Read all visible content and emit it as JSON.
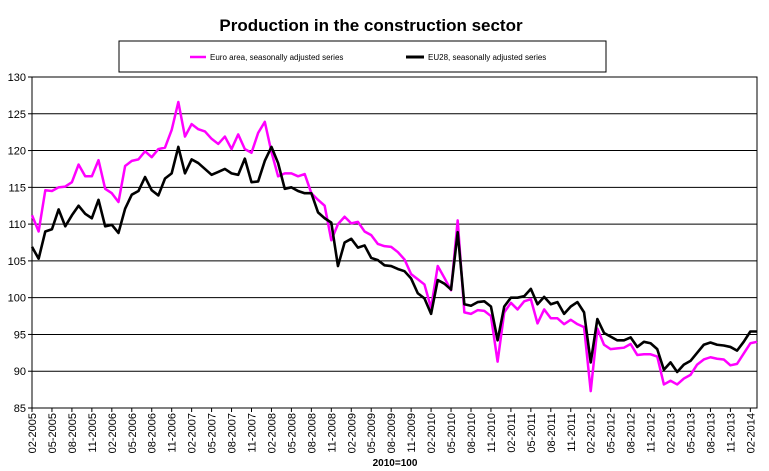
{
  "chart_data": {
    "type": "line",
    "title": "Production in the construction sector",
    "xlabel": "2010=100",
    "ylabel": "",
    "ylim": [
      85,
      130
    ],
    "yticks": [
      85,
      90,
      95,
      100,
      105,
      110,
      115,
      120,
      125,
      130
    ],
    "grid": true,
    "legend_position": "top",
    "x_ticks": [
      "02-2005",
      "05-2005",
      "08-2005",
      "11-2005",
      "02-2006",
      "05-2006",
      "08-2006",
      "11-2006",
      "02-2007",
      "05-2007",
      "08-2007",
      "11-2007",
      "02-2008",
      "05-2008",
      "08-2008",
      "11-2008",
      "02-2009",
      "05-2009",
      "08-2009",
      "11-2009",
      "02-2010",
      "05-2010",
      "08-2010",
      "11-2010",
      "02-2011",
      "05-2011",
      "08-2011",
      "11-2011",
      "02-2012",
      "05-2012",
      "08-2012",
      "11-2012",
      "02-2013",
      "05-2013",
      "08-2013",
      "11-2013",
      "02-2014"
    ],
    "x_start": "02-2005",
    "series": [
      {
        "name": "Euro area, seasonally adjusted series",
        "color": "#ff00ff",
        "values": [
          111.2,
          109.0,
          114.6,
          114.5,
          115.0,
          115.1,
          115.7,
          118.1,
          116.5,
          116.5,
          118.7,
          114.8,
          114.2,
          113.0,
          117.9,
          118.6,
          118.8,
          119.9,
          119.1,
          120.2,
          120.4,
          122.8,
          126.6,
          121.9,
          123.6,
          122.9,
          122.6,
          121.6,
          120.9,
          121.9,
          120.2,
          122.2,
          120.2,
          119.7,
          122.4,
          123.9,
          119.8,
          116.5,
          116.9,
          116.9,
          116.5,
          116.8,
          114.2,
          113.3,
          112.5,
          107.8,
          110.0,
          111.0,
          110.1,
          110.3,
          109.0,
          108.5,
          107.3,
          107.0,
          106.9,
          106.2,
          105.2,
          103.2,
          102.5,
          101.8,
          98.6,
          104.3,
          102.7,
          101.0,
          110.5,
          98.0,
          97.8,
          98.3,
          98.2,
          97.5,
          91.3,
          98.0,
          99.3,
          98.4,
          99.5,
          99.8,
          96.5,
          98.4,
          97.2,
          97.2,
          96.4,
          97.0,
          96.4,
          96.0,
          87.3,
          95.8,
          93.6,
          93.0,
          93.1,
          93.2,
          93.7,
          92.2,
          92.3,
          92.3,
          92.0,
          88.2,
          88.7,
          88.2,
          89.0,
          89.5,
          90.9,
          91.6,
          91.9,
          91.7,
          91.6,
          90.8,
          91.0,
          92.4,
          93.8,
          94.0
        ]
      },
      {
        "name": "EU28, seasonally adjusted series",
        "color": "#000000",
        "values": [
          106.9,
          105.3,
          109.0,
          109.3,
          112.0,
          109.7,
          111.2,
          112.5,
          111.4,
          110.8,
          113.3,
          109.7,
          109.9,
          108.8,
          112.1,
          114.0,
          114.5,
          116.4,
          114.6,
          113.9,
          116.2,
          116.9,
          120.5,
          116.9,
          118.8,
          118.3,
          117.5,
          116.7,
          117.1,
          117.5,
          116.9,
          116.7,
          118.9,
          115.7,
          115.8,
          118.6,
          120.5,
          118.3,
          114.8,
          115.0,
          114.5,
          114.2,
          114.2,
          111.6,
          110.8,
          110.2,
          104.3,
          107.5,
          108.0,
          106.8,
          107.1,
          105.4,
          105.1,
          104.4,
          104.3,
          103.9,
          103.6,
          102.6,
          100.6,
          99.9,
          97.8,
          102.4,
          101.9,
          101.1,
          108.9,
          99.1,
          98.9,
          99.4,
          99.5,
          98.8,
          94.2,
          98.8,
          100.0,
          100.0,
          100.2,
          101.2,
          99.1,
          100.1,
          99.1,
          99.4,
          97.8,
          98.8,
          99.4,
          98.0,
          91.2,
          97.1,
          95.2,
          94.7,
          94.2,
          94.2,
          94.6,
          93.3,
          94.0,
          93.8,
          93.0,
          90.2,
          91.2,
          89.9,
          90.9,
          91.4,
          92.5,
          93.6,
          93.9,
          93.6,
          93.5,
          93.3,
          92.8,
          94.0,
          95.4,
          95.4
        ]
      }
    ]
  }
}
